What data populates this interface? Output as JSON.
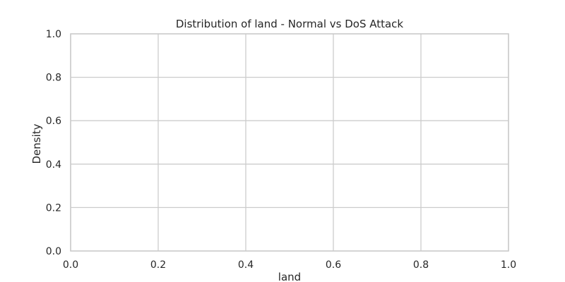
{
  "chart_data": {
    "type": "line",
    "title": "Distribution of land - Normal vs DoS Attack",
    "xlabel": "land",
    "ylabel": "Density",
    "xlim": [
      0.0,
      1.0
    ],
    "ylim": [
      0.0,
      1.0
    ],
    "xticks": [
      "0.0",
      "0.2",
      "0.4",
      "0.6",
      "0.8",
      "1.0"
    ],
    "yticks": [
      "0.0",
      "0.2",
      "0.4",
      "0.6",
      "0.8",
      "1.0"
    ],
    "grid": true,
    "series": []
  }
}
